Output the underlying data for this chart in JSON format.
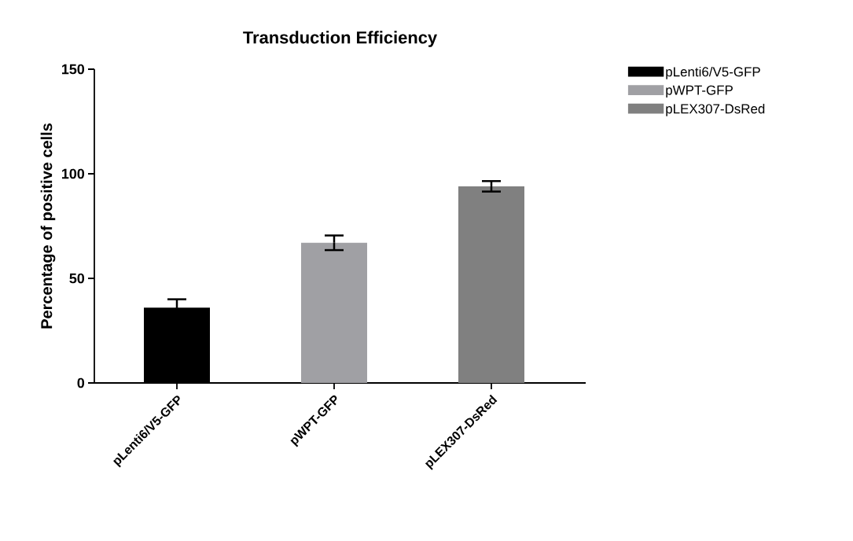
{
  "chart_data": {
    "type": "bar",
    "title": "Transduction Efficiency",
    "ylabel": "Percentage of positive cells",
    "categories": [
      "pLenti6/V5-GFP",
      "pWPT-GFP",
      "pLEX307-DsRed"
    ],
    "series": [
      {
        "name": "pLenti6/V5-GFP",
        "color": "#000000",
        "values": [
          36,
          null,
          null
        ],
        "errors": [
          4,
          null,
          null
        ]
      },
      {
        "name": "pWPT-GFP",
        "color": "#a0a0a4",
        "values": [
          null,
          67,
          null
        ],
        "errors": [
          null,
          3.5,
          null
        ]
      },
      {
        "name": "pLEX307-DsRed",
        "color": "#808080",
        "values": [
          null,
          null,
          94
        ],
        "errors": [
          null,
          null,
          2.5
        ]
      }
    ],
    "ylim": [
      0,
      150
    ],
    "yticks": [
      0,
      50,
      100,
      150
    ],
    "grid": false,
    "legend": "top right"
  }
}
